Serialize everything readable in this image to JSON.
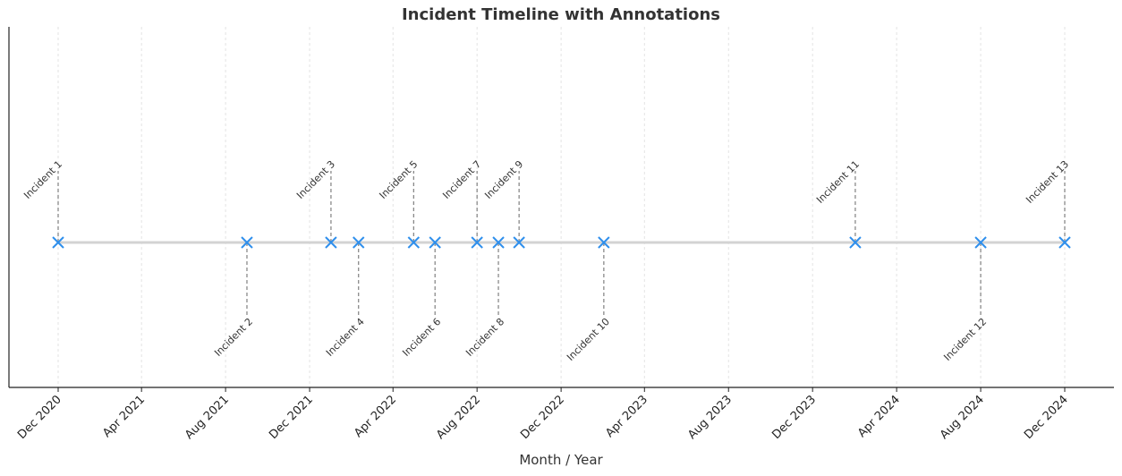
{
  "chart_data": {
    "type": "scatter",
    "title": "Incident Timeline with Annotations",
    "xlabel": "Month / Year",
    "ylabel": "",
    "x_ticks": [
      "Dec 2020",
      "Apr 2021",
      "Aug 2021",
      "Dec 2021",
      "Apr 2022",
      "Aug 2022",
      "Dec 2022",
      "Apr 2023",
      "Aug 2023",
      "Dec 2023",
      "Apr 2024",
      "Aug 2024",
      "Dec 2024"
    ],
    "grid": true,
    "marker": "x",
    "colors": {
      "marker": "#2f8fec",
      "baseline": "#d3d3d3",
      "leader": "#808080",
      "grid": "#e3e3e3",
      "axis": "#222222"
    },
    "events": [
      {
        "label": "Incident 1",
        "date": "2020-12-01",
        "side": "above"
      },
      {
        "label": "Incident 2",
        "date": "2021-09-01",
        "side": "below"
      },
      {
        "label": "Incident 3",
        "date": "2022-01-01",
        "side": "above"
      },
      {
        "label": "Incident 4",
        "date": "2022-02-10",
        "side": "below"
      },
      {
        "label": "Incident 5",
        "date": "2022-05-01",
        "side": "above"
      },
      {
        "label": "Incident 6",
        "date": "2022-06-01",
        "side": "below"
      },
      {
        "label": "Incident 7",
        "date": "2022-08-01",
        "side": "above"
      },
      {
        "label": "Incident 8",
        "date": "2022-09-01",
        "side": "below"
      },
      {
        "label": "Incident 9",
        "date": "2022-10-01",
        "side": "above"
      },
      {
        "label": "Incident 10",
        "date": "2023-02-01",
        "side": "below"
      },
      {
        "label": "Incident 11",
        "date": "2024-02-01",
        "side": "above"
      },
      {
        "label": "Incident 12",
        "date": "2024-08-01",
        "side": "below"
      },
      {
        "label": "Incident 13",
        "date": "2024-12-01",
        "side": "above"
      }
    ]
  }
}
